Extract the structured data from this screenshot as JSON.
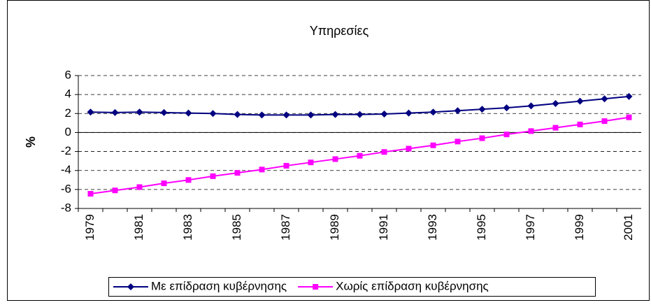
{
  "chart_data": {
    "type": "line",
    "title": "Υπηρεσίες",
    "y_label": "%",
    "categories": [
      "1979",
      null,
      "1981",
      null,
      "1983",
      null,
      "1985",
      null,
      "1987",
      null,
      "1989",
      null,
      "1991",
      null,
      "1993",
      null,
      "1995",
      null,
      "1997",
      null,
      "1999",
      null,
      "2001"
    ],
    "series": [
      {
        "name": "Με επίδραση κυβέρνησης",
        "color": "#000080",
        "marker": "diamond",
        "values": [
          2.15,
          2.1,
          2.15,
          2.1,
          2.05,
          2.0,
          1.9,
          1.85,
          1.85,
          1.85,
          1.9,
          1.9,
          1.95,
          2.05,
          2.15,
          2.3,
          2.45,
          2.6,
          2.8,
          3.05,
          3.3,
          3.55,
          3.8
        ]
      },
      {
        "name": "Χωρίς επίδραση κυβέρνησης",
        "color": "#ff00ff",
        "marker": "square",
        "values": [
          -6.45,
          -6.1,
          -5.75,
          -5.35,
          -5.0,
          -4.6,
          -4.25,
          -3.9,
          -3.5,
          -3.15,
          -2.8,
          -2.45,
          -2.05,
          -1.7,
          -1.35,
          -0.95,
          -0.6,
          -0.2,
          0.15,
          0.5,
          0.85,
          1.2,
          1.6
        ]
      }
    ],
    "ylim": [
      -8,
      6
    ],
    "yticks": [
      -8,
      -6,
      -4,
      -2,
      0,
      2,
      4,
      6
    ],
    "grid": true,
    "legend": "bottom"
  }
}
